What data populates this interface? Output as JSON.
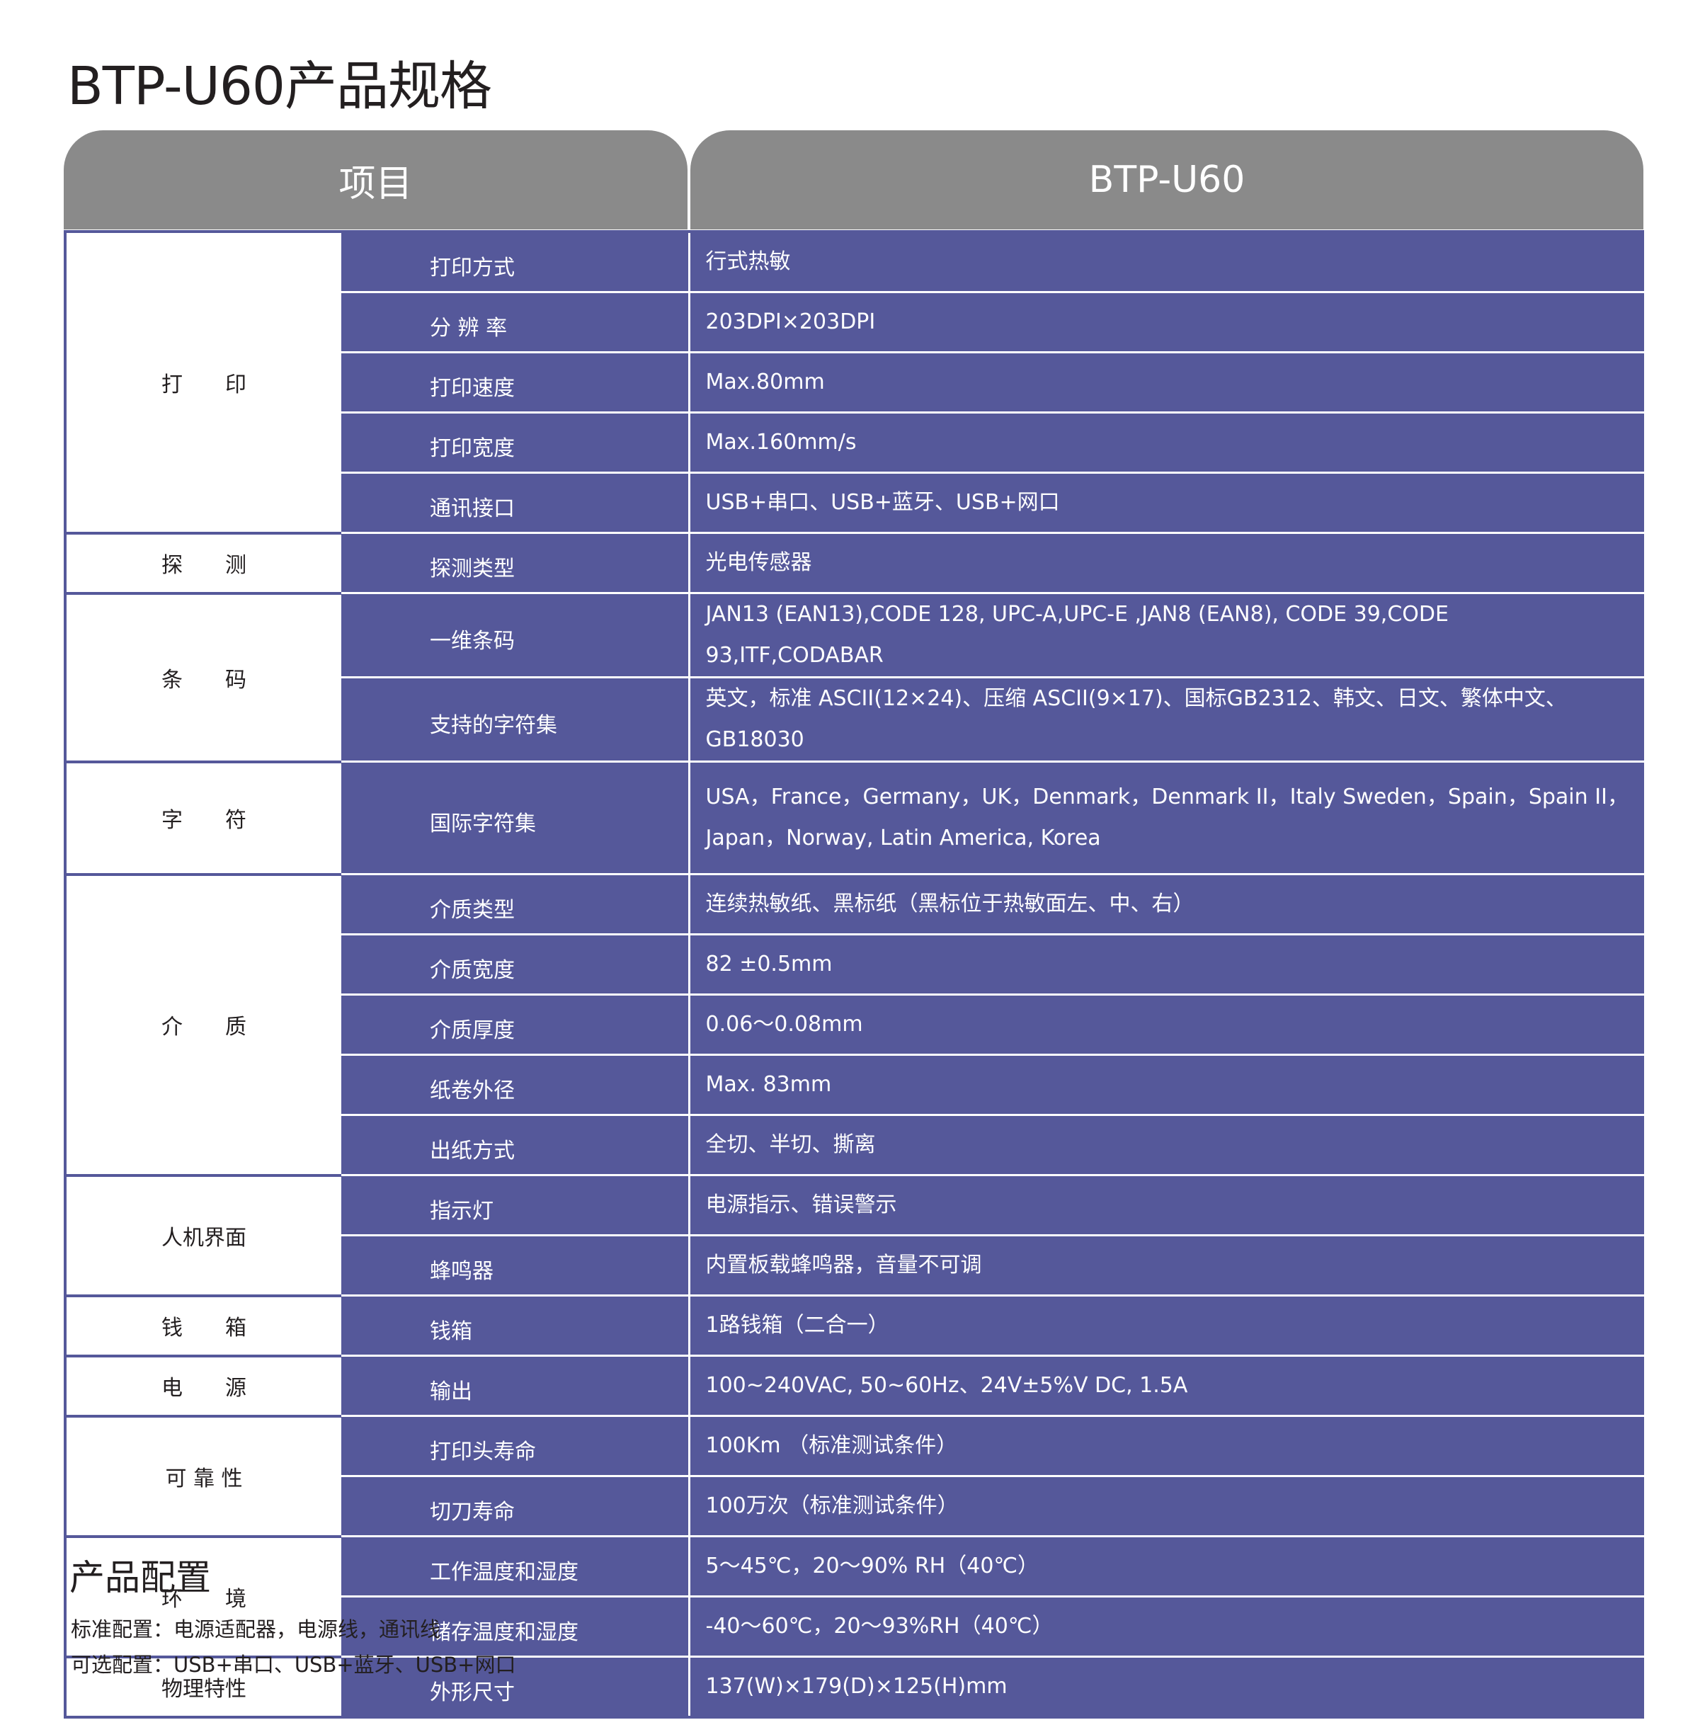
{
  "title": "BTP-U60产品规格",
  "header": {
    "col_item": "项目",
    "col_model": "BTP-U60"
  },
  "colors": {
    "header_gray": "#8a8a8a",
    "row_purple": "#55589a"
  },
  "groups": [
    {
      "label": "打　　印",
      "rows": [
        {
          "item": "打印方式",
          "value": "行式热敏"
        },
        {
          "item": "分 辨 率",
          "value": "203DPI×203DPI"
        },
        {
          "item": "打印速度",
          "value": "Max.80mm"
        },
        {
          "item": "打印宽度",
          "value": "Max.160mm/s"
        },
        {
          "item": "通讯接口",
          "value": "USB+串口、USB+蓝牙、USB+网口"
        }
      ]
    },
    {
      "label": "探　　测",
      "rows": [
        {
          "item": "探测类型",
          "value": "光电传感器"
        }
      ]
    },
    {
      "label": "条　　码",
      "rows": [
        {
          "item": "一维条码",
          "value": "JAN13 (EAN13),CODE 128, UPC-A,UPC-E ,JAN8 (EAN8), CODE 39,CODE 93,ITF,CODABAR"
        },
        {
          "item": "支持的字符集",
          "value": "英文，标准 ASCII(12×24)、压缩 ASCII(9×17)、国标GB2312、韩文、日文、繁体中文、GB18030"
        }
      ]
    },
    {
      "label": "字　　符",
      "rows": [
        {
          "item": "国际字符集",
          "value": "USA，France，Germany，UK，Denmark，Denmark II，Italy Sweden，Spain，Spain II，Japan，Norway, Latin America, Korea",
          "double": true
        }
      ]
    },
    {
      "label": "介　　质",
      "rows": [
        {
          "item": "介质类型",
          "value": "连续热敏纸、黑标纸（黑标位于热敏面左、中、右）"
        },
        {
          "item": "介质宽度",
          "value": "82 ±0.5mm"
        },
        {
          "item": "介质厚度",
          "value": "0.06～0.08mm"
        },
        {
          "item": "纸卷外径",
          "value": "Max. 83mm"
        },
        {
          "item": "出纸方式",
          "value": "全切、半切、撕离"
        }
      ]
    },
    {
      "label": "人机界面",
      "rows": [
        {
          "item": "指示灯",
          "value": "电源指示、错误警示"
        },
        {
          "item": "蜂鸣器",
          "value": "内置板载蜂鸣器，音量不可调"
        }
      ]
    },
    {
      "label": "钱　　箱",
      "rows": [
        {
          "item": "钱箱",
          "value": "1路钱箱（二合一）"
        }
      ]
    },
    {
      "label": "电　　源",
      "rows": [
        {
          "item": "输出",
          "value": "100~240VAC, 50~60Hz、24V±5%V DC, 1.5A"
        }
      ]
    },
    {
      "label": "可 靠 性",
      "rows": [
        {
          "item": "打印头寿命",
          "value": "100Km （标准测试条件）"
        },
        {
          "item": "切刀寿命",
          "value": "100万次（标准测试条件）"
        }
      ]
    },
    {
      "label": "环　　境",
      "rows": [
        {
          "item": "工作温度和湿度",
          "value": "5～45℃，20～90% RH（40℃）"
        },
        {
          "item": "储存温度和湿度",
          "value": "-40～60℃，20～93%RH（40℃）"
        }
      ]
    },
    {
      "label": "物理特性",
      "rows": [
        {
          "item": "外形尺寸",
          "value": "137(W)×179(D)×125(H)mm"
        }
      ]
    }
  ],
  "config": {
    "title": "产品配置",
    "standard": "标准配置：电源适配器，电源线，通讯线",
    "optional": "可选配置：USB+串口、USB+蓝牙、USB+网口"
  }
}
